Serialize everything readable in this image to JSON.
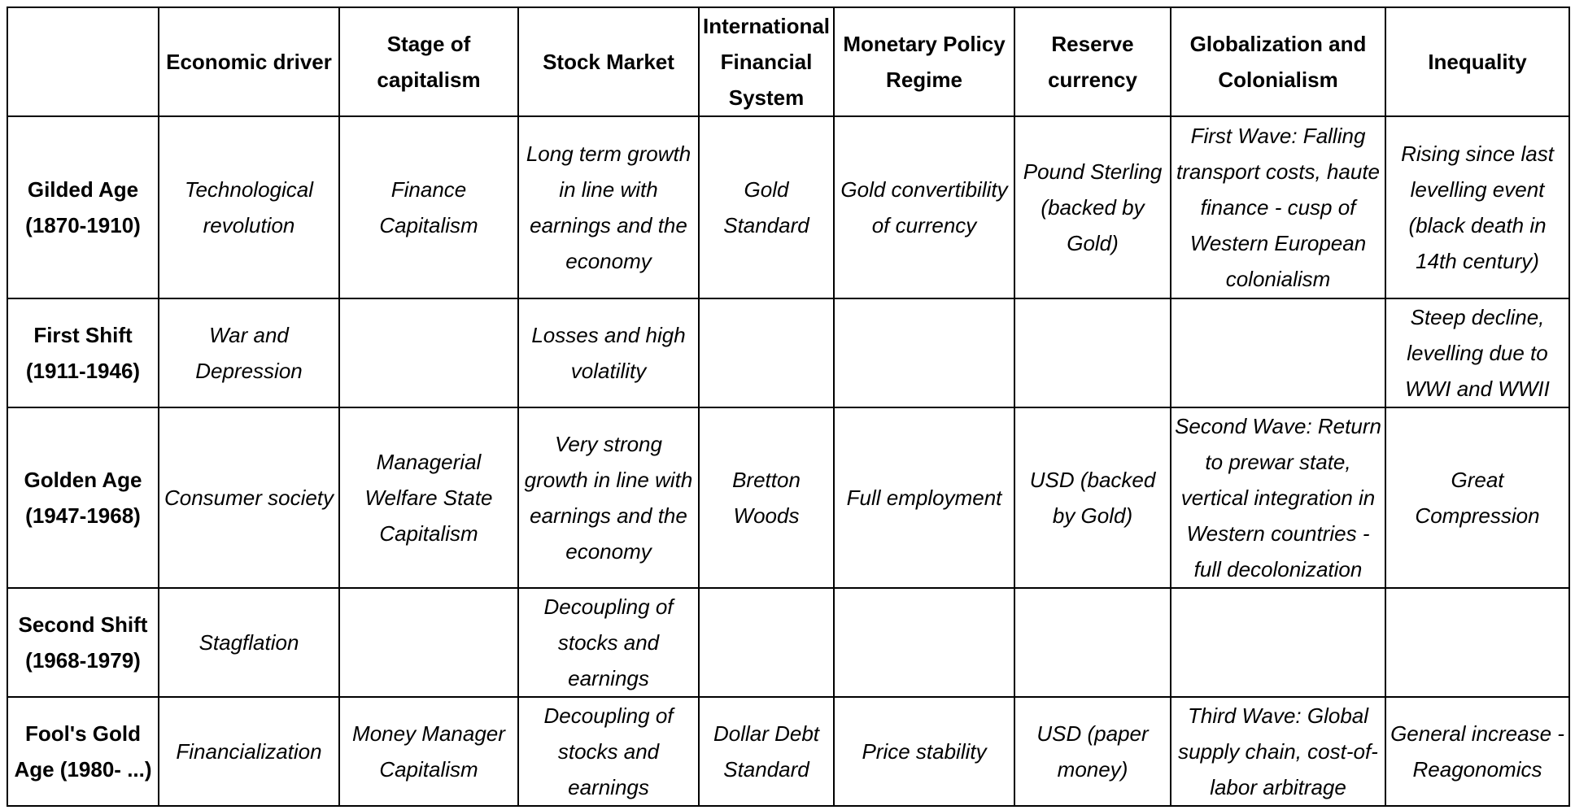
{
  "headers": [
    "",
    "Economic driver",
    "Stage of capitalism",
    "Stock Market",
    "International Financial System",
    "Monetary Policy Regime",
    "Reserve currency",
    "Globalization and Colonialism",
    "Inequality"
  ],
  "rows": [
    {
      "label": "Gilded Age (1870-1910)",
      "cells": [
        "Technological revolution",
        "Finance Capitalism",
        "Long term growth in line with earnings and the economy",
        "Gold Standard",
        "Gold convertibility of currency",
        "Pound Sterling (backed by Gold)",
        "First Wave: Falling transport costs, haute finance - cusp of Western European colonialism",
        "Rising since last levelling event (black death in 14th century)"
      ]
    },
    {
      "label": "First Shift (1911-1946)",
      "cells": [
        "War and Depression",
        "",
        "Losses and high volatility",
        "",
        "",
        "",
        "",
        "Steep decline, levelling due to WWI and WWII"
      ]
    },
    {
      "label": "Golden Age (1947-1968)",
      "cells": [
        "Consumer society",
        "Managerial Welfare State Capitalism",
        "Very strong growth in line with earnings and the economy",
        "Bretton Woods",
        "Full employment",
        "USD  (backed by Gold)",
        "Second Wave: Return to prewar state, vertical integration in Western countries - full decolonization",
        "Great Compression"
      ]
    },
    {
      "label": "Second Shift (1968-1979)",
      "cells": [
        "Stagflation",
        "",
        "Decoupling of stocks and earnings",
        "",
        "",
        "",
        "",
        ""
      ]
    },
    {
      "label": "Fool's Gold Age (1980- ...)",
      "cells": [
        "Financialization",
        "Money Manager Capitalism",
        "Decoupling of stocks and earnings",
        "Dollar Debt Standard",
        "Price stability",
        "USD (paper money)",
        "Third Wave: Global supply chain, cost-of-labor arbitrage",
        "General increase - Reagonomics"
      ]
    }
  ]
}
